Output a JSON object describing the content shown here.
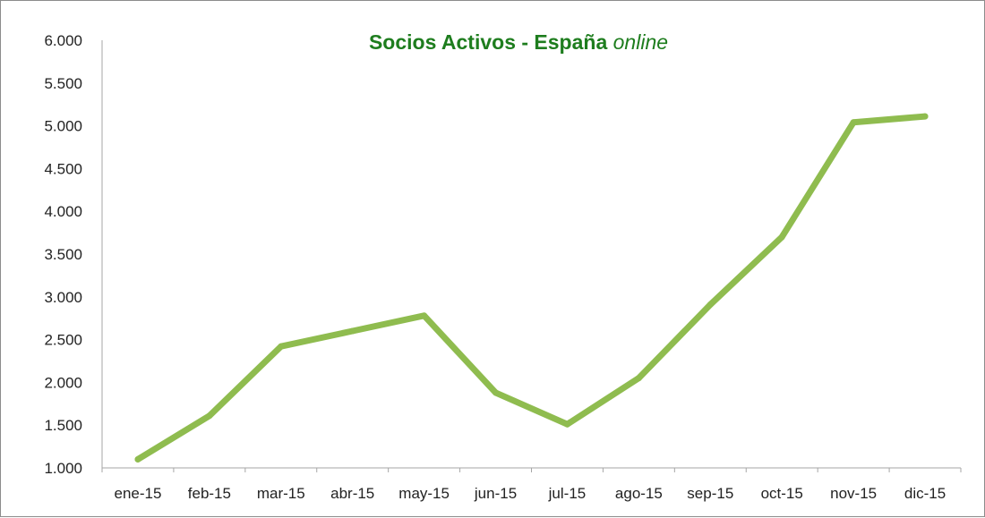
{
  "chart_data": {
    "type": "line",
    "title": "Socios Activos - España",
    "title_emphasis": "online",
    "categories": [
      "ene-15",
      "feb-15",
      "mar-15",
      "abr-15",
      "may-15",
      "jun-15",
      "jul-15",
      "ago-15",
      "sep-15",
      "oct-15",
      "nov-15",
      "dic-15"
    ],
    "series": [
      {
        "values": [
          1100,
          1610,
          2420,
          2600,
          2780,
          1880,
          1510,
          2050,
          2910,
          3700,
          5040,
          5110
        ],
        "color": "#8fbc4f"
      }
    ],
    "ylim": [
      1000,
      6000
    ],
    "yticks": [
      {
        "value": 1000,
        "label": "1.000"
      },
      {
        "value": 1500,
        "label": "1.500"
      },
      {
        "value": 2000,
        "label": "2.000"
      },
      {
        "value": 2500,
        "label": "2.500"
      },
      {
        "value": 3000,
        "label": "3.000"
      },
      {
        "value": 3500,
        "label": "3.500"
      },
      {
        "value": 4000,
        "label": "4.000"
      },
      {
        "value": 4500,
        "label": "4.500"
      },
      {
        "value": 5000,
        "label": "5.000"
      },
      {
        "value": 5500,
        "label": "5.500"
      },
      {
        "value": 6000,
        "label": "6.000"
      }
    ],
    "grid": false,
    "legend": "none",
    "title_color": "#1e7d1e",
    "axis_color": "#a6a6a6"
  }
}
